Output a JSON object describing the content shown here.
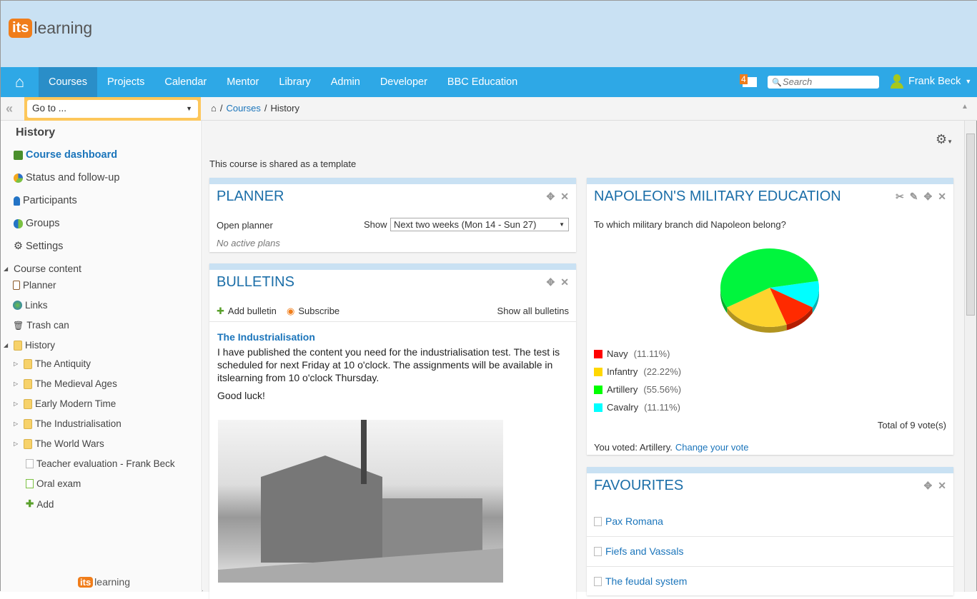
{
  "brand": {
    "logo_its": "its",
    "logo_learning": "learning"
  },
  "nav": {
    "items": [
      {
        "label": "Courses",
        "active": true
      },
      {
        "label": "Projects"
      },
      {
        "label": "Calendar"
      },
      {
        "label": "Mentor"
      },
      {
        "label": "Library"
      },
      {
        "label": "Admin"
      },
      {
        "label": "Developer"
      },
      {
        "label": "BBC Education"
      }
    ],
    "message_count": "4",
    "search_placeholder": "Search",
    "user_name": "Frank Beck"
  },
  "toolbar": {
    "goto": "Go to ...",
    "breadcrumb": [
      "Courses",
      "History"
    ]
  },
  "sidebar": {
    "title": "History",
    "items": [
      "Course dashboard",
      "Status and follow-up",
      "Participants",
      "Groups",
      "Settings"
    ],
    "content_header": "Course content",
    "content_items": [
      "Planner",
      "Links",
      "Trash can"
    ],
    "folder": "History",
    "folder_items": [
      "The Antiquity",
      "The Medieval Ages",
      "Early Modern Time",
      "The Industrialisation",
      "The World Wars"
    ],
    "file_items": [
      "Teacher evaluation - Frank Beck",
      "Oral exam"
    ],
    "add": "Add"
  },
  "main": {
    "shared_note": "This course is shared as a template",
    "planner": {
      "title": "PLANNER",
      "open": "Open planner",
      "show_label": "Show",
      "show_value": "Next two weeks (Mon 14 - Sun 27)",
      "empty": "No active plans"
    },
    "bulletins": {
      "title": "BULLETINS",
      "add": "Add bulletin",
      "subscribe": "Subscribe",
      "show_all": "Show all bulletins",
      "post_title": "The Industrialisation",
      "post_body": "I have published the content you need for the industrialisation test. The test is scheduled for next Friday at 10 o'clock. The assignments will be available in itslearning from 10 o'clock Thursday.",
      "post_sign": "Good luck!"
    },
    "poll": {
      "title": "NAPOLEON'S MILITARY EDUCATION",
      "question": "To which military branch did Napoleon belong?",
      "total": "Total of 9 vote(s)",
      "voted": "You voted: Artillery.",
      "change": "Change your vote"
    },
    "favourites": {
      "title": "FAVOURITES",
      "items": [
        "Pax Romana",
        "Fiefs and Vassals",
        "The feudal system"
      ]
    }
  },
  "chart_data": {
    "type": "pie",
    "series": [
      {
        "name": "Navy",
        "value": 11.11,
        "label": "(11.11%)",
        "color": "#ff2a00"
      },
      {
        "name": "Infantry",
        "value": 22.22,
        "label": "(22.22%)",
        "color": "#fdd32e"
      },
      {
        "name": "Artillery",
        "value": 55.56,
        "label": "(55.56%)",
        "color": "#00f53d"
      },
      {
        "name": "Cavalry",
        "value": 11.11,
        "label": "(11.11%)",
        "color": "#00ffff"
      }
    ]
  },
  "colors": {
    "nav": "#2ea8e6",
    "accent": "#f07d1a",
    "link": "#1b75bb"
  }
}
